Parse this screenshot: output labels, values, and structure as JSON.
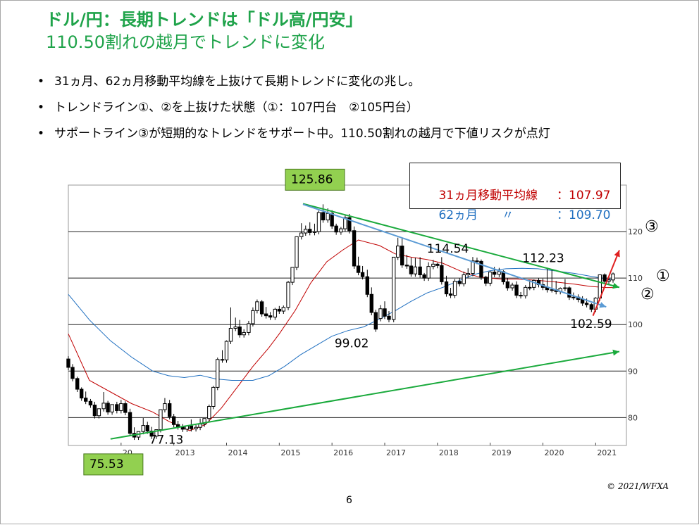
{
  "title": {
    "line1": "ドル/円：長期トレンドは「ドル高/円安」",
    "line2": "110.50割れの越月でトレンドに変化"
  },
  "bullets": [
    "31ヵ月、62ヵ月移動平均線を上抜けて長期トレンドに変化の兆し。",
    "トレンドライン①、②を上抜けた状態（①：107円台　②105円台）",
    "サポートライン③が短期的なトレンドをサポート中。110.50割れの越月で下値リスクが点灯"
  ],
  "bullet_symbol": "•",
  "legend": {
    "ma31_label": "31ヵ月移動平均線",
    "ma31_value": "：107.97",
    "ma62_label": "62ヵ月　　〃",
    "ma62_value": "：109.70"
  },
  "colors": {
    "title": "#1fa34a",
    "ma31": "#c00000",
    "ma62": "#1f6fc0",
    "trend_green": "#1aaa3c",
    "trend_blue": "#5b9bd5",
    "callout_bg": "#92d050",
    "support_red": "#e02020"
  },
  "chart_data": {
    "type": "candlestick",
    "subject": "USD/JPY monthly",
    "y_ticks": [
      "120",
      "110",
      "100",
      "90",
      "80"
    ],
    "x_ticks": [
      "2012",
      "2013",
      "2014",
      "2015",
      "2016",
      "2017",
      "2018",
      "2019",
      "2020",
      "2021"
    ],
    "x_tick_display": [
      "20",
      "2013",
      "2014",
      "2015",
      "2016",
      "2017",
      "2018",
      "2019",
      "2020",
      "2021"
    ],
    "ylim": [
      74,
      130
    ],
    "xlim": [
      2011.0,
      2021.45
    ],
    "grid_lines_y": [
      120,
      110,
      100,
      90,
      80
    ],
    "annotations": [
      {
        "text": "125.86",
        "x": 2015.45,
        "y": 125.86,
        "style": "green-box"
      },
      {
        "text": "75.53",
        "x": 2011.8,
        "y": 75.53,
        "style": "green-box"
      },
      {
        "text": "77.13",
        "x": 2012.8,
        "y": 77.13,
        "style": "plain"
      },
      {
        "text": "99.02",
        "x": 2016.45,
        "y": 99.02,
        "style": "plain"
      },
      {
        "text": "114.54",
        "x": 2018.2,
        "y": 114.54,
        "style": "plain"
      },
      {
        "text": "112.23",
        "x": 2019.85,
        "y": 112.23,
        "style": "plain"
      },
      {
        "text": "102.59",
        "x": 2020.65,
        "y": 102.59,
        "style": "plain"
      }
    ],
    "trendline_labels": [
      "①",
      "②",
      "③"
    ],
    "candles": [
      {
        "x": 2011.0,
        "o": 92.6,
        "h": 93.2,
        "c": 90.8
      },
      {
        "x": 2011.08,
        "o": 90.8,
        "h": 91.5,
        "c": 88.4
      },
      {
        "x": 2011.17,
        "o": 88.4,
        "h": 88.8,
        "c": 86.1
      },
      {
        "x": 2011.25,
        "o": 86.1,
        "h": 86.5,
        "c": 84.2
      },
      {
        "x": 2011.33,
        "o": 84.2,
        "h": 85.6,
        "c": 83.5
      },
      {
        "x": 2011.42,
        "o": 83.5,
        "h": 84.0,
        "c": 82.7
      },
      {
        "x": 2011.5,
        "o": 82.7,
        "h": 83.4,
        "c": 80.4
      },
      {
        "x": 2011.58,
        "o": 80.4,
        "h": 81.2,
        "c": 81.9
      },
      {
        "x": 2011.67,
        "o": 81.9,
        "h": 85.5,
        "c": 83.1
      },
      {
        "x": 2011.75,
        "o": 83.1,
        "h": 83.6,
        "c": 81.2
      },
      {
        "x": 2011.83,
        "o": 81.2,
        "h": 82.1,
        "c": 82.8
      },
      {
        "x": 2011.92,
        "o": 82.8,
        "h": 83.4,
        "c": 81.5
      },
      {
        "x": 2012.0,
        "o": 81.5,
        "h": 83.8,
        "c": 83.0
      },
      {
        "x": 2012.08,
        "o": 83.0,
        "h": 83.5,
        "c": 81.1
      },
      {
        "x": 2012.17,
        "o": 81.1,
        "h": 81.9,
        "c": 76.6
      },
      {
        "x": 2012.25,
        "o": 76.6,
        "h": 77.9,
        "c": 75.8
      },
      {
        "x": 2012.33,
        "o": 75.8,
        "h": 76.5,
        "c": 77.0
      },
      {
        "x": 2012.42,
        "o": 77.0,
        "h": 79.9,
        "c": 78.3
      },
      {
        "x": 2012.5,
        "o": 78.3,
        "h": 79.1,
        "c": 77.1
      },
      {
        "x": 2012.58,
        "o": 77.1,
        "h": 78.0,
        "c": 76.0
      },
      {
        "x": 2012.67,
        "o": 76.0,
        "h": 76.9,
        "c": 77.4
      },
      {
        "x": 2012.75,
        "o": 77.4,
        "h": 79.2,
        "c": 81.7
      },
      {
        "x": 2012.83,
        "o": 81.7,
        "h": 84.2,
        "c": 83.0
      },
      {
        "x": 2012.92,
        "o": 83.0,
        "h": 83.8,
        "c": 80.2
      },
      {
        "x": 2013.0,
        "o": 80.2,
        "h": 80.8,
        "c": 78.5
      },
      {
        "x": 2013.08,
        "o": 78.5,
        "h": 79.3,
        "c": 78.0
      },
      {
        "x": 2013.17,
        "o": 78.0,
        "h": 78.6,
        "c": 77.5
      },
      {
        "x": 2013.25,
        "o": 77.5,
        "h": 78.3,
        "c": 78.2
      },
      {
        "x": 2013.33,
        "o": 78.2,
        "h": 79.6,
        "c": 77.6
      },
      {
        "x": 2013.42,
        "o": 77.6,
        "h": 78.4,
        "c": 77.9
      },
      {
        "x": 2013.5,
        "o": 77.9,
        "h": 79.8,
        "c": 78.6
      },
      {
        "x": 2013.58,
        "o": 78.6,
        "h": 79.5,
        "c": 79.8
      },
      {
        "x": 2013.67,
        "o": 79.8,
        "h": 82.8,
        "c": 82.4
      },
      {
        "x": 2013.75,
        "o": 82.4,
        "h": 86.8,
        "c": 86.5
      },
      {
        "x": 2013.83,
        "o": 86.5,
        "h": 92.9,
        "c": 92.5
      },
      {
        "x": 2013.92,
        "o": 92.5,
        "h": 94.5,
        "c": 92.4
      },
      {
        "x": 2014.0,
        "o": 92.4,
        "h": 96.6,
        "c": 96.4
      },
      {
        "x": 2014.08,
        "o": 96.4,
        "h": 103.7,
        "c": 99.2
      },
      {
        "x": 2014.17,
        "o": 99.2,
        "h": 101.5,
        "c": 99.5
      },
      {
        "x": 2014.25,
        "o": 99.5,
        "h": 101.0,
        "c": 97.8
      },
      {
        "x": 2014.33,
        "o": 97.8,
        "h": 99.0,
        "c": 98.3
      },
      {
        "x": 2014.42,
        "o": 98.3,
        "h": 100.8,
        "c": 100.2
      },
      {
        "x": 2014.5,
        "o": 100.2,
        "h": 103.7,
        "c": 103.0
      },
      {
        "x": 2014.58,
        "o": 103.0,
        "h": 105.4,
        "c": 104.9
      },
      {
        "x": 2014.67,
        "o": 104.9,
        "h": 105.3,
        "c": 102.3
      },
      {
        "x": 2014.75,
        "o": 102.3,
        "h": 103.8,
        "c": 101.9
      },
      {
        "x": 2014.83,
        "o": 101.9,
        "h": 102.7,
        "c": 101.6
      },
      {
        "x": 2014.92,
        "o": 101.6,
        "h": 103.6,
        "c": 103.3
      },
      {
        "x": 2015.0,
        "o": 103.3,
        "h": 104.0,
        "c": 102.9
      },
      {
        "x": 2015.08,
        "o": 102.9,
        "h": 104.1,
        "c": 103.7
      },
      {
        "x": 2015.17,
        "o": 103.7,
        "h": 109.4,
        "c": 109.1
      },
      {
        "x": 2015.25,
        "o": 109.1,
        "h": 110.1,
        "c": 112.3
      },
      {
        "x": 2015.33,
        "o": 112.3,
        "h": 116.3,
        "c": 118.9
      },
      {
        "x": 2015.42,
        "o": 118.9,
        "h": 121.8,
        "c": 119.7
      },
      {
        "x": 2015.5,
        "o": 119.7,
        "h": 121.3,
        "c": 120.5
      },
      {
        "x": 2015.58,
        "o": 120.5,
        "h": 122.0,
        "c": 119.8
      },
      {
        "x": 2015.67,
        "o": 119.8,
        "h": 121.7,
        "c": 120.0
      },
      {
        "x": 2015.75,
        "o": 120.0,
        "h": 124.5,
        "c": 124.1
      },
      {
        "x": 2015.83,
        "o": 124.1,
        "h": 125.86,
        "c": 122.5
      },
      {
        "x": 2015.92,
        "o": 122.5,
        "h": 125.0,
        "c": 123.9
      },
      {
        "x": 2016.0,
        "o": 123.9,
        "h": 124.6,
        "c": 121.2
      },
      {
        "x": 2016.08,
        "o": 121.2,
        "h": 121.7,
        "c": 119.9
      },
      {
        "x": 2016.17,
        "o": 119.9,
        "h": 121.0,
        "c": 120.6
      },
      {
        "x": 2016.25,
        "o": 120.6,
        "h": 123.5,
        "c": 123.0
      },
      {
        "x": 2016.33,
        "o": 123.0,
        "h": 123.8,
        "c": 120.2
      },
      {
        "x": 2016.42,
        "o": 120.2,
        "h": 121.1,
        "c": 112.6
      },
      {
        "x": 2016.5,
        "o": 112.6,
        "h": 114.6,
        "c": 111.2
      },
      {
        "x": 2016.58,
        "o": 111.2,
        "h": 112.6,
        "c": 110.3
      },
      {
        "x": 2016.67,
        "o": 110.3,
        "h": 111.8,
        "c": 106.5
      },
      {
        "x": 2016.75,
        "o": 106.5,
        "h": 108.0,
        "c": 102.6
      },
      {
        "x": 2016.83,
        "o": 102.6,
        "h": 103.2,
        "c": 99.02
      },
      {
        "x": 2016.92,
        "o": 101.3,
        "h": 104.2,
        "c": 103.4
      },
      {
        "x": 2017.0,
        "o": 103.4,
        "h": 105.0,
        "c": 101.8
      },
      {
        "x": 2017.08,
        "o": 101.8,
        "h": 102.9,
        "c": 101.1
      },
      {
        "x": 2017.17,
        "o": 101.1,
        "h": 114.0,
        "c": 114.5
      },
      {
        "x": 2017.25,
        "o": 114.5,
        "h": 118.7,
        "c": 116.9
      },
      {
        "x": 2017.33,
        "o": 116.9,
        "h": 118.6,
        "c": 112.8
      },
      {
        "x": 2017.42,
        "o": 112.8,
        "h": 115.0,
        "c": 112.6
      },
      {
        "x": 2017.5,
        "o": 112.6,
        "h": 114.4,
        "c": 110.9
      },
      {
        "x": 2017.58,
        "o": 110.9,
        "h": 114.4,
        "c": 112.4
      },
      {
        "x": 2017.67,
        "o": 112.4,
        "h": 114.5,
        "c": 110.7
      },
      {
        "x": 2017.75,
        "o": 110.7,
        "h": 111.1,
        "c": 110.0
      },
      {
        "x": 2017.83,
        "o": 110.0,
        "h": 113.4,
        "c": 112.5
      },
      {
        "x": 2017.92,
        "o": 112.5,
        "h": 113.9,
        "c": 113.0
      },
      {
        "x": 2018.0,
        "o": 113.0,
        "h": 113.3,
        "c": 112.7
      },
      {
        "x": 2018.08,
        "o": 112.7,
        "h": 114.5,
        "c": 109.2
      },
      {
        "x": 2018.17,
        "o": 109.2,
        "h": 110.5,
        "c": 106.6
      },
      {
        "x": 2018.25,
        "o": 106.6,
        "h": 107.9,
        "c": 106.3
      },
      {
        "x": 2018.33,
        "o": 106.3,
        "h": 109.8,
        "c": 109.3
      },
      {
        "x": 2018.42,
        "o": 109.3,
        "h": 110.0,
        "c": 108.8
      },
      {
        "x": 2018.5,
        "o": 108.8,
        "h": 111.4,
        "c": 110.7
      },
      {
        "x": 2018.58,
        "o": 110.7,
        "h": 112.1,
        "c": 111.0
      },
      {
        "x": 2018.67,
        "o": 111.0,
        "h": 114.54,
        "c": 113.7
      },
      {
        "x": 2018.75,
        "o": 113.7,
        "h": 114.4,
        "c": 113.6
      },
      {
        "x": 2018.83,
        "o": 113.6,
        "h": 114.0,
        "c": 110.2
      },
      {
        "x": 2018.92,
        "o": 110.2,
        "h": 110.5,
        "c": 108.9
      },
      {
        "x": 2019.0,
        "o": 108.9,
        "h": 111.5,
        "c": 111.3
      },
      {
        "x": 2019.08,
        "o": 111.3,
        "h": 112.4,
        "c": 110.8
      },
      {
        "x": 2019.17,
        "o": 110.8,
        "h": 112.2,
        "c": 111.4
      },
      {
        "x": 2019.25,
        "o": 111.4,
        "h": 111.7,
        "c": 109.2
      },
      {
        "x": 2019.33,
        "o": 109.2,
        "h": 110.0,
        "c": 107.9
      },
      {
        "x": 2019.42,
        "o": 107.9,
        "h": 109.0,
        "c": 108.5
      },
      {
        "x": 2019.5,
        "o": 108.5,
        "h": 109.3,
        "c": 106.3
      },
      {
        "x": 2019.58,
        "o": 106.3,
        "h": 107.0,
        "c": 106.2
      },
      {
        "x": 2019.67,
        "o": 106.2,
        "h": 108.5,
        "c": 108.0
      },
      {
        "x": 2019.75,
        "o": 108.0,
        "h": 109.6,
        "c": 108.0
      },
      {
        "x": 2019.83,
        "o": 108.0,
        "h": 109.7,
        "c": 109.5
      },
      {
        "x": 2019.92,
        "o": 109.5,
        "h": 110.0,
        "c": 108.6
      },
      {
        "x": 2020.0,
        "o": 108.6,
        "h": 109.9,
        "c": 108.0
      },
      {
        "x": 2020.08,
        "o": 108.0,
        "h": 112.23,
        "c": 107.5
      },
      {
        "x": 2020.17,
        "o": 107.5,
        "h": 111.7,
        "c": 107.5
      },
      {
        "x": 2020.25,
        "o": 107.5,
        "h": 109.4,
        "c": 107.1
      },
      {
        "x": 2020.33,
        "o": 107.1,
        "h": 108.0,
        "c": 107.8
      },
      {
        "x": 2020.42,
        "o": 107.8,
        "h": 109.8,
        "c": 107.9
      },
      {
        "x": 2020.5,
        "o": 107.9,
        "h": 108.2,
        "c": 105.9
      },
      {
        "x": 2020.58,
        "o": 105.9,
        "h": 106.9,
        "c": 105.9
      },
      {
        "x": 2020.67,
        "o": 105.9,
        "h": 106.5,
        "c": 105.4
      },
      {
        "x": 2020.75,
        "o": 105.4,
        "h": 106.1,
        "c": 104.6
      },
      {
        "x": 2020.83,
        "o": 104.6,
        "h": 105.6,
        "c": 104.3
      },
      {
        "x": 2020.92,
        "o": 104.3,
        "h": 104.6,
        "c": 103.3
      },
      {
        "x": 2021.0,
        "o": 103.3,
        "h": 105.9,
        "c": 105.7
      },
      {
        "x": 2021.08,
        "o": 105.7,
        "h": 109.9,
        "c": 110.7
      },
      {
        "x": 2021.17,
        "o": 110.7,
        "h": 111.0,
        "c": 109.3
      },
      {
        "x": 2021.25,
        "o": 109.3,
        "h": 110.2,
        "c": 109.6
      },
      {
        "x": 2021.33,
        "o": 109.6,
        "h": 111.2,
        "c": 110.9
      }
    ],
    "series": [
      {
        "key": "ma31",
        "points": [
          [
            2011.0,
            98.0
          ],
          [
            2011.4,
            88.0
          ],
          [
            2011.8,
            85.5
          ],
          [
            2012.2,
            83.0
          ],
          [
            2012.6,
            81.2
          ],
          [
            2012.9,
            79.2
          ],
          [
            2013.3,
            77.2
          ],
          [
            2013.6,
            78.5
          ],
          [
            2013.9,
            82.0
          ],
          [
            2014.2,
            86.5
          ],
          [
            2014.5,
            91.0
          ],
          [
            2014.8,
            95.0
          ],
          [
            2015.0,
            98.0
          ],
          [
            2015.3,
            103.0
          ],
          [
            2015.6,
            109.0
          ],
          [
            2015.9,
            113.5
          ],
          [
            2016.2,
            116.0
          ],
          [
            2016.5,
            118.2
          ],
          [
            2016.9,
            117.0
          ],
          [
            2017.2,
            115.2
          ],
          [
            2017.5,
            114.5
          ],
          [
            2017.8,
            114.0
          ],
          [
            2018.1,
            113.2
          ],
          [
            2018.5,
            111.2
          ],
          [
            2018.8,
            110.2
          ],
          [
            2019.2,
            109.8
          ],
          [
            2019.5,
            109.8
          ],
          [
            2019.9,
            109.5
          ],
          [
            2020.2,
            109.2
          ],
          [
            2020.6,
            108.7
          ],
          [
            2020.9,
            108.2
          ],
          [
            2021.2,
            107.97
          ],
          [
            2021.35,
            107.97
          ]
        ]
      },
      {
        "key": "ma62",
        "points": [
          [
            2011.0,
            106.5
          ],
          [
            2011.4,
            101.0
          ],
          [
            2011.8,
            96.5
          ],
          [
            2012.2,
            93.0
          ],
          [
            2012.6,
            90.0
          ],
          [
            2012.9,
            89.0
          ],
          [
            2013.2,
            88.6
          ],
          [
            2013.5,
            89.1
          ],
          [
            2013.8,
            88.3
          ],
          [
            2014.1,
            88.0
          ],
          [
            2014.5,
            88.0
          ],
          [
            2014.8,
            89.0
          ],
          [
            2015.1,
            91.0
          ],
          [
            2015.4,
            93.5
          ],
          [
            2015.7,
            95.5
          ],
          [
            2016.0,
            97.5
          ],
          [
            2016.3,
            98.7
          ],
          [
            2016.6,
            99.5
          ],
          [
            2016.9,
            101.2
          ],
          [
            2017.2,
            103.0
          ],
          [
            2017.5,
            105.0
          ],
          [
            2017.8,
            106.8
          ],
          [
            2018.1,
            108.0
          ],
          [
            2018.4,
            109.4
          ],
          [
            2018.7,
            110.8
          ],
          [
            2019.0,
            111.6
          ],
          [
            2019.3,
            112.0
          ],
          [
            2019.6,
            112.1
          ],
          [
            2019.9,
            112.0
          ],
          [
            2020.2,
            111.6
          ],
          [
            2020.6,
            111.0
          ],
          [
            2020.9,
            110.4
          ],
          [
            2021.2,
            109.85
          ],
          [
            2021.35,
            109.7
          ]
        ]
      }
    ],
    "trendlines": [
      {
        "key": "①",
        "color": "green",
        "from": [
          2015.45,
          126.0
        ],
        "to": [
          2021.45,
          108.0
        ]
      },
      {
        "key": "②",
        "color": "blue",
        "from": [
          2015.45,
          125.86
        ],
        "to": [
          2021.2,
          103.8
        ]
      },
      {
        "key": "③",
        "color": "red",
        "from": [
          2020.95,
          101.9
        ],
        "to": [
          2021.45,
          116.0
        ]
      },
      {
        "key": "support",
        "color": "green",
        "from": [
          2011.8,
          75.4
        ],
        "to": [
          2021.45,
          94.2
        ]
      }
    ]
  },
  "page": {
    "copyright": "© 2021/WFXA",
    "number": "6"
  }
}
